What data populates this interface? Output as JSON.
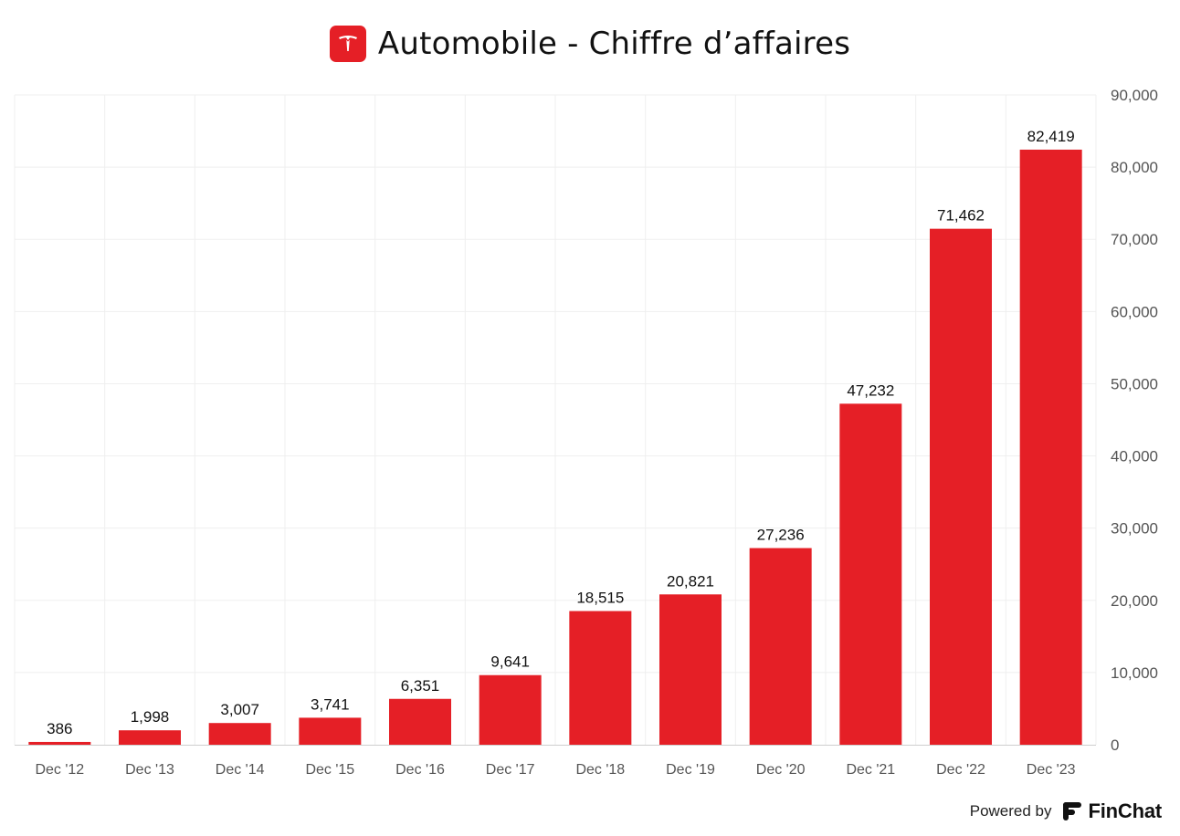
{
  "header": {
    "title": "Automobile - Chiffre d’affaires",
    "logo_icon": "tesla-logo-icon"
  },
  "footer": {
    "powered_by": "Powered by",
    "brand_name": "FinChat",
    "brand_icon": "finchat-logo-icon"
  },
  "colors": {
    "bar": "#e51f26",
    "grid": "#efefef",
    "axis_text": "#555555",
    "label_text": "#111111"
  },
  "chart_data": {
    "type": "bar",
    "title": "Automobile - Chiffre d’affaires",
    "xlabel": "",
    "ylabel": "",
    "categories": [
      "Dec '12",
      "Dec '13",
      "Dec '14",
      "Dec '15",
      "Dec '16",
      "Dec '17",
      "Dec '18",
      "Dec '19",
      "Dec '20",
      "Dec '21",
      "Dec '22",
      "Dec '23"
    ],
    "values": [
      386,
      1998,
      3007,
      3741,
      6351,
      9641,
      18515,
      20821,
      27236,
      47232,
      71462,
      82419
    ],
    "data_labels": [
      "386",
      "1,998",
      "3,007",
      "3,741",
      "6,351",
      "9,641",
      "18,515",
      "20,821",
      "27,236",
      "47,232",
      "71,462",
      "82,419"
    ],
    "ylim": [
      0,
      90000
    ],
    "yticks": [
      0,
      10000,
      20000,
      30000,
      40000,
      50000,
      60000,
      70000,
      80000,
      90000
    ],
    "ytick_labels": [
      "0",
      "10,000",
      "20,000",
      "30,000",
      "40,000",
      "50,000",
      "60,000",
      "70,000",
      "80,000",
      "90,000"
    ],
    "y_axis_side": "right",
    "grid": true,
    "legend": "none"
  }
}
